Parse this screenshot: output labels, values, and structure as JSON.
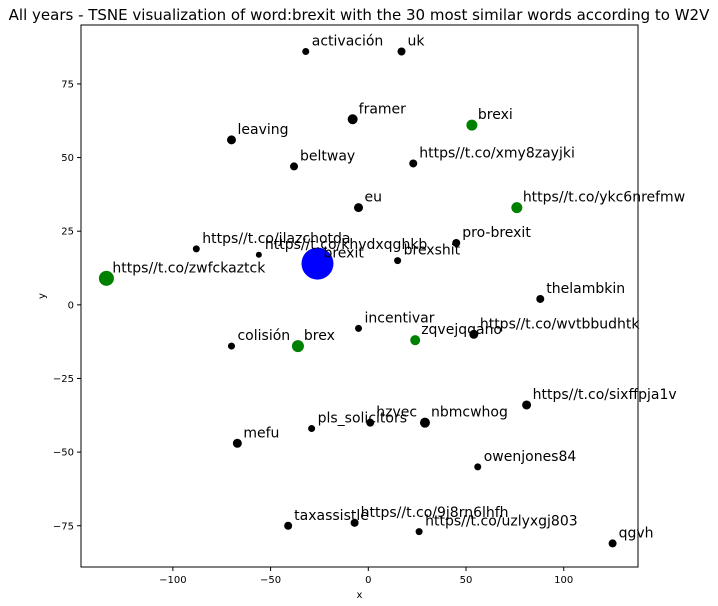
{
  "chart_data": {
    "type": "scatter",
    "title": "All years - TSNE visualization of word:brexit with the 30 most similar words according to W2V",
    "xlabel": "x",
    "ylabel": "y",
    "xlim": [
      -147,
      138
    ],
    "ylim": [
      -89,
      95
    ],
    "x_ticks": [
      -100,
      -50,
      0,
      50,
      100
    ],
    "y_ticks": [
      -75,
      -50,
      -25,
      0,
      25,
      50,
      75
    ],
    "x_tick_labels": [
      "−100",
      "−50",
      "0",
      "50",
      "100"
    ],
    "y_tick_labels": [
      "−75",
      "−50",
      "−25",
      "0",
      "25",
      "50",
      "75"
    ],
    "grid": false,
    "colors": {
      "target": "#0000ff",
      "similar": "#008000",
      "other": "#000000"
    },
    "points": [
      {
        "label": "brexit",
        "x": -26,
        "y": 14,
        "group": "target",
        "size": 16
      },
      {
        "label": "activación",
        "x": -32,
        "y": 86,
        "group": "other",
        "size": 3.5
      },
      {
        "label": "uk",
        "x": 17,
        "y": 86,
        "group": "other",
        "size": 4
      },
      {
        "label": "framer",
        "x": -8,
        "y": 63,
        "group": "other",
        "size": 5
      },
      {
        "label": "brexi",
        "x": 53,
        "y": 61,
        "group": "similar",
        "size": 5.5
      },
      {
        "label": "leaving",
        "x": -70,
        "y": 56,
        "group": "other",
        "size": 4.5
      },
      {
        "label": "beltway",
        "x": -38,
        "y": 47,
        "group": "other",
        "size": 4
      },
      {
        "label": "https//t.co/xmy8zayjki",
        "x": 23,
        "y": 48,
        "group": "other",
        "size": 4
      },
      {
        "label": "eu",
        "x": -5,
        "y": 33,
        "group": "other",
        "size": 4.5
      },
      {
        "label": "https//t.co/ykc6nrefmw",
        "x": 76,
        "y": 33,
        "group": "similar",
        "size": 5.5
      },
      {
        "label": "https//t.co/jlazchotda",
        "x": -88,
        "y": 19,
        "group": "other",
        "size": 3.5
      },
      {
        "label": "https//t.co/khvdxqghkb",
        "x": -56,
        "y": 17,
        "group": "other",
        "size": 3
      },
      {
        "label": "pro-brexit",
        "x": 45,
        "y": 21,
        "group": "other",
        "size": 4
      },
      {
        "label": "brexshit",
        "x": 15,
        "y": 15,
        "group": "other",
        "size": 3.5
      },
      {
        "label": "https//t.co/zwfckaztck",
        "x": -134,
        "y": 9,
        "group": "similar",
        "size": 7.5
      },
      {
        "label": "thelambkin",
        "x": 88,
        "y": 2,
        "group": "other",
        "size": 4
      },
      {
        "label": "incentivar",
        "x": -5,
        "y": -8,
        "group": "other",
        "size": 3.5
      },
      {
        "label": "colisión",
        "x": -70,
        "y": -14,
        "group": "other",
        "size": 3.5
      },
      {
        "label": "brex",
        "x": -36,
        "y": -14,
        "group": "similar",
        "size": 6
      },
      {
        "label": "zqvejqqano",
        "x": 24,
        "y": -12,
        "group": "similar",
        "size": 5
      },
      {
        "label": "https//t.co/wvtbbudhtk",
        "x": 54,
        "y": -10,
        "group": "other",
        "size": 4.5
      },
      {
        "label": "https//t.co/sixffpja1v",
        "x": 81,
        "y": -34,
        "group": "other",
        "size": 4.5
      },
      {
        "label": "hzvec",
        "x": 1,
        "y": -40,
        "group": "other",
        "size": 4
      },
      {
        "label": "pls_solicitors",
        "x": -29,
        "y": -42,
        "group": "other",
        "size": 3.5
      },
      {
        "label": "nbmcwhog",
        "x": 29,
        "y": -40,
        "group": "other",
        "size": 5
      },
      {
        "label": "mefu",
        "x": -67,
        "y": -47,
        "group": "other",
        "size": 4.5
      },
      {
        "label": "owenjones84",
        "x": 56,
        "y": -55,
        "group": "other",
        "size": 3.5
      },
      {
        "label": "taxassistle",
        "x": -41,
        "y": -75,
        "group": "other",
        "size": 4
      },
      {
        "label": "https//t.co/9j8rn6lhfh",
        "x": -7,
        "y": -74,
        "group": "other",
        "size": 4
      },
      {
        "label": "https//t.co/uzlyxgj803",
        "x": 26,
        "y": -77,
        "group": "other",
        "size": 3.5
      },
      {
        "label": "qgvh",
        "x": 125,
        "y": -81,
        "group": "other",
        "size": 4
      }
    ]
  }
}
